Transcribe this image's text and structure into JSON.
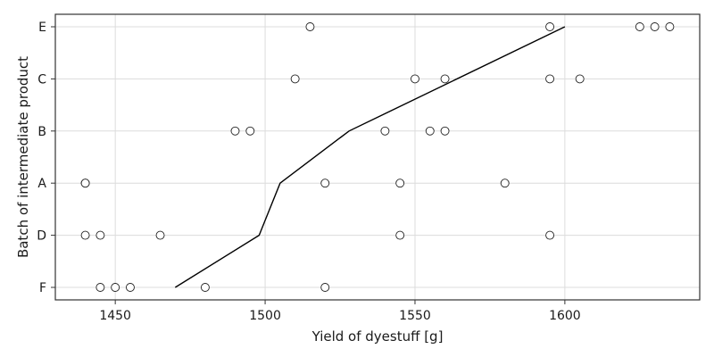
{
  "chart_data": {
    "type": "scatter",
    "title": "",
    "xlabel": "Yield of dyestuff [g]",
    "ylabel": "Batch of intermediate product",
    "xlim": [
      1430,
      1645
    ],
    "categories": [
      "F",
      "D",
      "A",
      "B",
      "C",
      "E"
    ],
    "x_ticks": [
      1450,
      1500,
      1550,
      1600
    ],
    "grid": true,
    "points": [
      {
        "batch": "F",
        "yields": [
          1445,
          1450,
          1455,
          1480,
          1520
        ]
      },
      {
        "batch": "D",
        "yields": [
          1440,
          1445,
          1465,
          1545,
          1595
        ]
      },
      {
        "batch": "A",
        "yields": [
          1440,
          1440,
          1520,
          1545,
          1580
        ]
      },
      {
        "batch": "B",
        "yields": [
          1490,
          1495,
          1540,
          1555,
          1560
        ]
      },
      {
        "batch": "C",
        "yields": [
          1510,
          1550,
          1560,
          1595,
          1605
        ]
      },
      {
        "batch": "E",
        "yields": [
          1515,
          1595,
          1625,
          1630,
          1635
        ]
      }
    ],
    "mean_line": {
      "x": [
        1470,
        1498,
        1505,
        1528,
        1600
      ],
      "y": [
        "F",
        "D",
        "A",
        "B",
        "E"
      ]
    }
  }
}
